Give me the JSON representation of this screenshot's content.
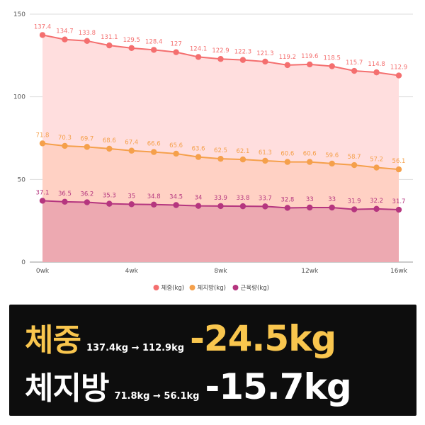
{
  "chart_data": {
    "type": "area",
    "categories": [
      "0wk",
      "",
      "",
      "",
      "4wk",
      "",
      "",
      "",
      "8wk",
      "",
      "",
      "",
      "12wk",
      "",
      "",
      "",
      "16wk"
    ],
    "x_tick_labels": [
      "0wk",
      "4wk",
      "8wk",
      "12wk",
      "16wk"
    ],
    "y_ticks": [
      "0",
      "50",
      "100",
      "150"
    ],
    "ylim": [
      0,
      150
    ],
    "grid": true,
    "legend_position": "bottom",
    "series": [
      {
        "name": "체중(kg)",
        "color": "#f46f6f",
        "fill": "#ffdede",
        "values": [
          137.4,
          134.7,
          133.8,
          131.1,
          129.5,
          128.4,
          127,
          124.1,
          122.9,
          122.3,
          121.3,
          119.2,
          119.6,
          118.5,
          115.7,
          114.8,
          112.9
        ],
        "labels": [
          "137.4",
          "134.7",
          "133.8",
          "131.1",
          "129.5",
          "128.4",
          "127",
          "124.1",
          "122.9",
          "122.3",
          "121.3",
          "119.2",
          "119.6",
          "118.5",
          "115.7",
          "114.8",
          "112.9"
        ]
      },
      {
        "name": "체지방(kg)",
        "color": "#f5a04b",
        "fill": "#ffd1c4",
        "values": [
          71.8,
          70.3,
          69.7,
          68.6,
          67.4,
          66.6,
          65.6,
          63.6,
          62.5,
          62.1,
          61.3,
          60.6,
          60.6,
          59.6,
          58.7,
          57.2,
          56.1
        ],
        "labels": [
          "71.8",
          "70.3",
          "69.7",
          "68.6",
          "67.4",
          "66.6",
          "65.6",
          "63.6",
          "62.5",
          "62.1",
          "61.3",
          "60.6",
          "60.6",
          "59.6",
          "58.7",
          "57.2",
          "56.1"
        ]
      },
      {
        "name": "근육량(kg)",
        "color": "#b5367f",
        "fill": "#eda9b1",
        "values": [
          37.1,
          36.5,
          36.2,
          35.3,
          35,
          34.8,
          34.5,
          34,
          33.9,
          33.8,
          33.7,
          32.8,
          33,
          33,
          31.9,
          32.2,
          31.7
        ],
        "labels": [
          "37.1",
          "36.5",
          "36.2",
          "35.3",
          "35",
          "34.8",
          "34.5",
          "34",
          "33.9",
          "33.8",
          "33.7",
          "32.8",
          "33",
          "33",
          "31.9",
          "32.2",
          "31.7"
        ]
      }
    ]
  },
  "summary": {
    "weight": {
      "title": "체중",
      "range": "137.4kg → 112.9kg",
      "change": "-24.5kg",
      "color": "#f9c64e"
    },
    "fat": {
      "title": "체지방",
      "range": "71.8kg → 56.1kg",
      "change": "-15.7kg",
      "color": "#ffffff"
    }
  }
}
